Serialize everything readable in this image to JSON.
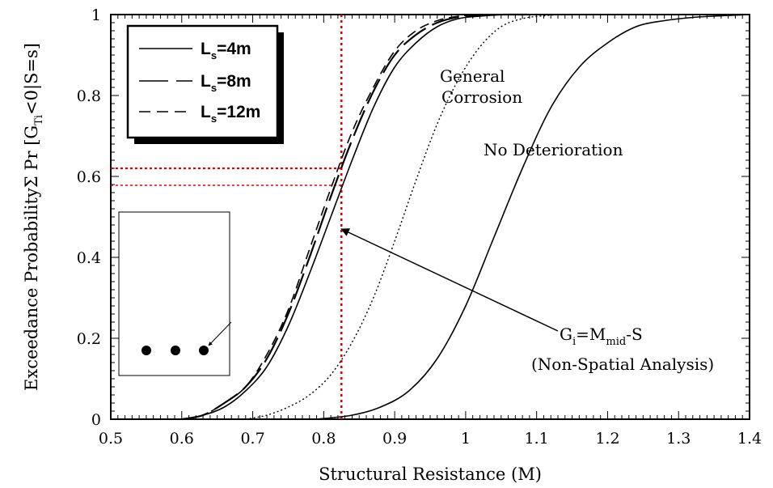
{
  "chart_data": {
    "type": "line",
    "xlabel": "Structural Resistance (M)",
    "ylabel": "Exceedance ProbabilityΣ Pr [G",
    "ylabel_sub": "Ti",
    "ylabel_tail": "<0|S=s]",
    "xlim": [
      0.5,
      1.4
    ],
    "ylim": [
      0,
      1
    ],
    "x_ticks": [
      0.5,
      0.6,
      0.7,
      0.8,
      0.9,
      1,
      1.1,
      1.2,
      1.3,
      1.4
    ],
    "y_ticks": [
      0,
      0.2,
      0.4,
      0.6,
      0.8,
      1
    ],
    "grid": false,
    "legend_position": "top-left",
    "legend": [
      {
        "prefix": "L",
        "sub": "s",
        "suffix": "=4m",
        "style": "solid"
      },
      {
        "prefix": "L",
        "sub": "s",
        "suffix": "=8m",
        "style": "long-dash"
      },
      {
        "prefix": "L",
        "sub": "s",
        "suffix": "=12m",
        "style": "dash"
      }
    ],
    "series": [
      {
        "style": "solid",
        "x": [
          0.6,
          0.63,
          0.66,
          0.69,
          0.72,
          0.75,
          0.78,
          0.81,
          0.84,
          0.87,
          0.9,
          0.93,
          0.96,
          0.99,
          1.02,
          1.06,
          1.1,
          1.14
        ],
        "y": [
          0.0,
          0.01,
          0.03,
          0.07,
          0.13,
          0.23,
          0.36,
          0.5,
          0.64,
          0.77,
          0.87,
          0.93,
          0.97,
          0.99,
          0.996,
          1.0,
          1.0,
          1.0
        ]
      },
      {
        "style": "long-dash",
        "x": [
          0.6,
          0.63,
          0.66,
          0.69,
          0.72,
          0.75,
          0.78,
          0.81,
          0.84,
          0.87,
          0.9,
          0.93,
          0.96,
          0.99,
          1.02,
          1.06,
          1.1
        ],
        "y": [
          0.0,
          0.01,
          0.04,
          0.08,
          0.15,
          0.26,
          0.4,
          0.55,
          0.69,
          0.81,
          0.9,
          0.95,
          0.98,
          0.994,
          0.999,
          1.0,
          1.0
        ]
      },
      {
        "style": "dash",
        "x": [
          0.6,
          0.63,
          0.66,
          0.69,
          0.72,
          0.75,
          0.78,
          0.81,
          0.84,
          0.87,
          0.9,
          0.93,
          0.96,
          0.99,
          1.02,
          1.06,
          1.1
        ],
        "y": [
          0.0,
          0.01,
          0.04,
          0.08,
          0.16,
          0.27,
          0.42,
          0.57,
          0.71,
          0.82,
          0.91,
          0.96,
          0.985,
          0.996,
          1.0,
          1.0,
          1.0
        ]
      },
      {
        "style": "dot",
        "label": "General Corrosion",
        "x": [
          0.69,
          0.72,
          0.75,
          0.78,
          0.81,
          0.84,
          0.87,
          0.9,
          0.93,
          0.96,
          0.99,
          1.02,
          1.05,
          1.08,
          1.11,
          1.14,
          1.18
        ],
        "y": [
          0.0,
          0.01,
          0.03,
          0.06,
          0.11,
          0.19,
          0.3,
          0.44,
          0.59,
          0.73,
          0.84,
          0.92,
          0.97,
          0.99,
          0.997,
          1.0,
          1.0
        ]
      },
      {
        "style": "solid",
        "label": "No Deterioration",
        "x": [
          0.79,
          0.84,
          0.88,
          0.92,
          0.96,
          1.0,
          1.04,
          1.08,
          1.12,
          1.16,
          1.2,
          1.24,
          1.28,
          1.32,
          1.36,
          1.4
        ],
        "y": [
          0.0,
          0.01,
          0.03,
          0.07,
          0.15,
          0.28,
          0.45,
          0.62,
          0.77,
          0.87,
          0.93,
          0.97,
          0.985,
          0.993,
          0.997,
          1.0
        ]
      }
    ],
    "reference_lines": {
      "vertical_x": 0.825,
      "horizontal_y": [
        0.62,
        0.578
      ]
    },
    "annotations": {
      "general_corrosion": [
        "General",
        "Corrosion"
      ],
      "no_deterioration": "No Deterioration",
      "gi_line1": {
        "p1": "G",
        "s1": "i",
        "p2": "=M",
        "s2": "mid",
        "p3": "-S"
      },
      "gi_line2": "(Non-Spatial Analysis)",
      "arrow_target": {
        "x": 0.825,
        "y": 0.47
      }
    },
    "inset": {
      "bars": 3
    }
  }
}
